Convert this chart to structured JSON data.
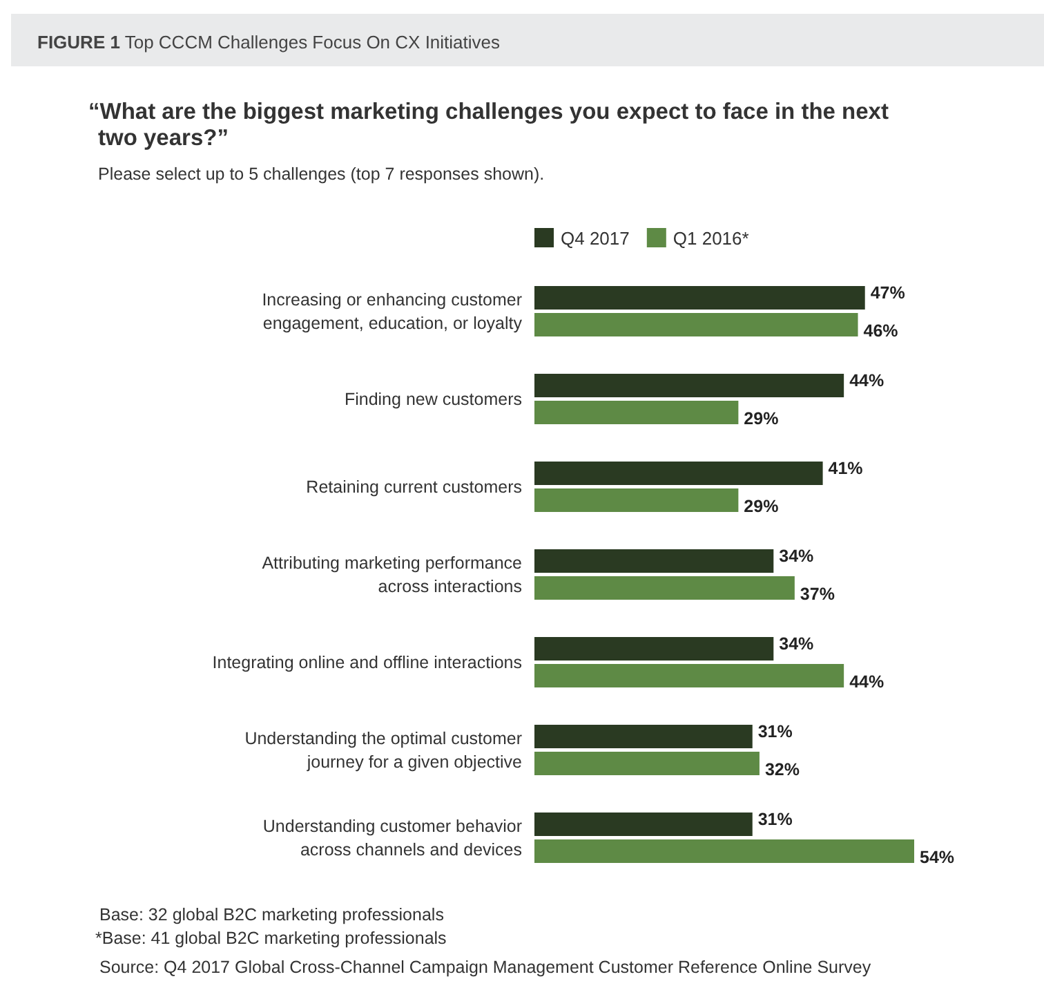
{
  "chart_data": {
    "type": "bar",
    "orientation": "horizontal",
    "title": "FIGURE 1 Top CCCM Challenges Focus On CX Initiatives",
    "subtitle": "“What are the biggest marketing challenges you expect to face in the next two years?”",
    "categories": [
      "Increasing or enhancing customer engagement, education, or loyalty",
      "Finding new customers",
      "Retaining current customers",
      "Attributing marketing performance across interactions",
      "Integrating online and offline interactions",
      "Understanding the optimal customer journey for a given objective",
      "Understanding customer behavior across channels and devices"
    ],
    "series": [
      {
        "name": "Q4 2017",
        "color": "#2a3a22",
        "values": [
          47,
          44,
          41,
          34,
          34,
          31,
          31
        ],
        "value_labels": [
          "47%",
          "44%",
          "41%",
          "34%",
          "34%",
          "31%",
          "31%"
        ]
      },
      {
        "name": "Q1 2016*",
        "color": "#5e8a45",
        "values": [
          46,
          29,
          29,
          37,
          44,
          32,
          54
        ],
        "value_labels": [
          "46%",
          "29%",
          "29%",
          "37%",
          "44%",
          "32%",
          "54%"
        ]
      }
    ],
    "legend": "top",
    "annotations": [
      "Please select up to 5 challenges (top 7 responses shown).",
      "Base: 32 global B2C marketing professionals",
      "*Base: 41 global B2C marketing professionals",
      "Source: Q4 2017 Global Cross-Channel Campaign Management Customer Reference Online Survey"
    ]
  }
}
